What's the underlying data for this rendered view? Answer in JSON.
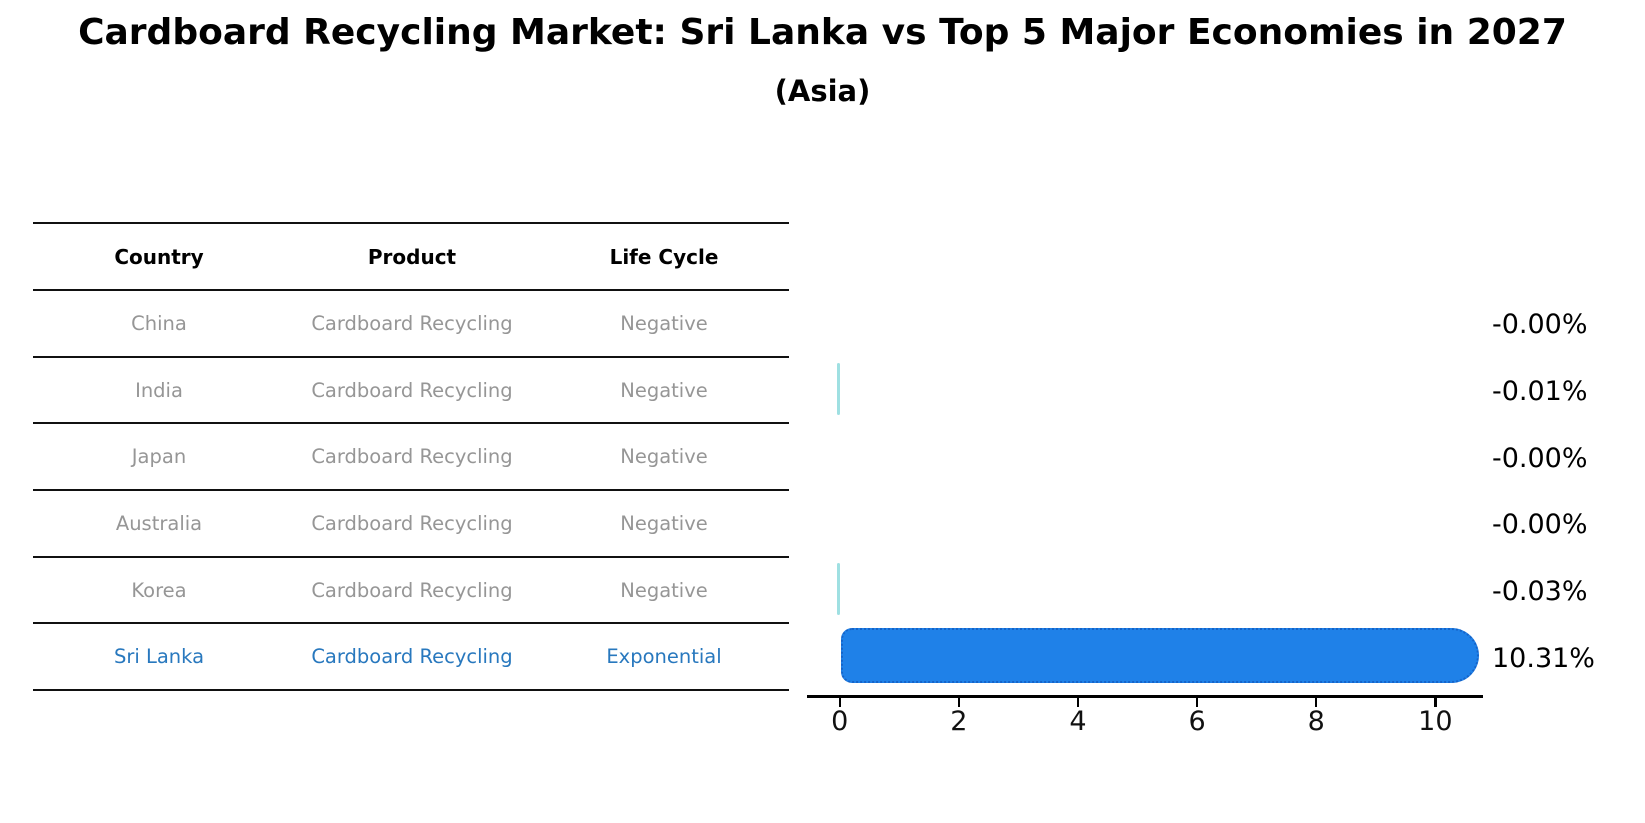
{
  "title": "Cardboard Recycling Market: Sri Lanka vs Top 5 Major Economies in 2027",
  "subtitle": "(Asia)",
  "table": {
    "headers": [
      "Country",
      "Product",
      "Life Cycle"
    ],
    "rows": [
      {
        "country": "China",
        "product": "Cardboard Recycling",
        "life_cycle": "Negative",
        "highlight": false
      },
      {
        "country": "India",
        "product": "Cardboard Recycling",
        "life_cycle": "Negative",
        "highlight": false
      },
      {
        "country": "Japan",
        "product": "Cardboard Recycling",
        "life_cycle": "Negative",
        "highlight": false
      },
      {
        "country": "Australia",
        "product": "Cardboard Recycling",
        "life_cycle": "Negative",
        "highlight": false
      },
      {
        "country": "Korea",
        "product": "Cardboard Recycling",
        "life_cycle": "Negative",
        "highlight": false
      },
      {
        "country": "Sri Lanka",
        "product": "Cardboard Recycling",
        "life_cycle": "Exponential",
        "highlight": true
      }
    ]
  },
  "chart_data": {
    "type": "bar",
    "orientation": "horizontal",
    "title": "Cardboard Recycling Market: Sri Lanka vs Top 5 Major Economies in 2027 (Asia)",
    "categories": [
      "China",
      "India",
      "Japan",
      "Australia",
      "Korea",
      "Sri Lanka"
    ],
    "values": [
      -0.0,
      -0.01,
      -0.0,
      -0.0,
      -0.03,
      10.31
    ],
    "value_labels": [
      "-0.00%",
      "-0.01%",
      "-0.00%",
      "-0.00%",
      "-0.03%",
      "10.31%"
    ],
    "x_ticks": [
      0,
      2,
      4,
      6,
      8,
      10
    ],
    "xlim": [
      -0.55,
      10.8
    ],
    "grid": false,
    "legend": false,
    "highlight_index": 5,
    "colors": {
      "highlight_bar_fill": "#1F81E8",
      "highlight_bar_edge": "#1563C8",
      "tiny_bar": "#9FE0E2",
      "highlight_text": "#2878BE",
      "muted_text": "#969696",
      "axis": "#000000"
    }
  }
}
